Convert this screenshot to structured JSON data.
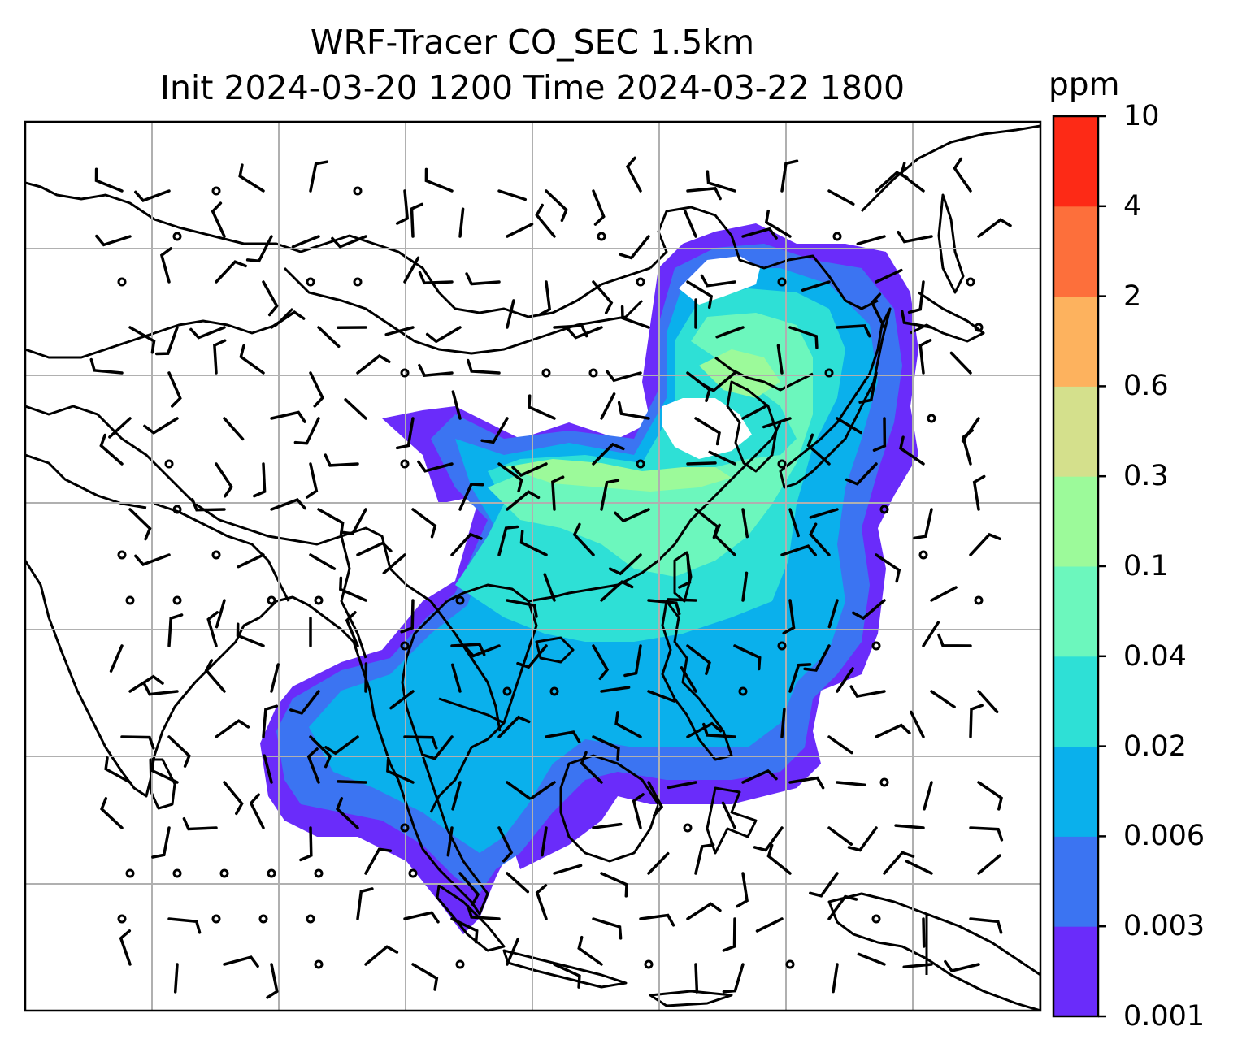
{
  "title": {
    "line1": "WRF-Tracer CO_SEC 1.5km",
    "line2": "Init 2024-03-20 1200 Time 2024-03-22 1800"
  },
  "colorbar": {
    "units": "ppm",
    "levels": [
      "0.001",
      "0.003",
      "0.006",
      "0.02",
      "0.04",
      "0.1",
      "0.3",
      "0.6",
      "2",
      "4",
      "10"
    ],
    "colors": [
      "#6a2cfa",
      "#3b74f2",
      "#0ab0ec",
      "#2ee0d6",
      "#6cf7bd",
      "#9cfa9a",
      "#d4e08c",
      "#fdb25e",
      "#fd6f3b",
      "#fd2a16"
    ]
  },
  "map": {
    "layers": [
      "coastlines",
      "country-borders",
      "gridlines",
      "wind-barbs",
      "tracer-concentration-fill"
    ]
  }
}
